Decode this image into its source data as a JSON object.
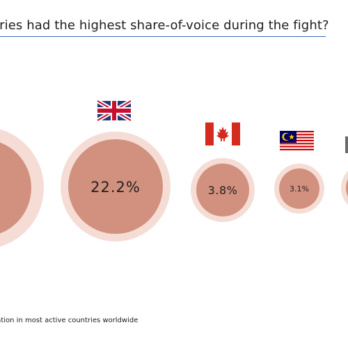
{
  "title": "tries had the highest share-of-voice during the fight?",
  "footnote": "sation in most active countries worldwide",
  "colors": {
    "inner": "#d2917e",
    "outer": "#f5ddd6",
    "title_rule": "#3b68b0"
  },
  "chart_data": {
    "type": "bubble",
    "title": "tries had the highest share-of-voice during the fight?",
    "series": [
      {
        "category": "",
        "flag": "unknown-flag-icon",
        "value": null,
        "label": "%"
      },
      {
        "category": "",
        "flag": "uk-flag-icon",
        "value": 22.2,
        "label": "22.2%"
      },
      {
        "category": "",
        "flag": "canada-flag-icon",
        "value": 3.8,
        "label": "3.8%"
      },
      {
        "category": "",
        "flag": "malaysia-flag-icon",
        "value": 3.1,
        "label": "3.1%"
      },
      {
        "category": "",
        "flag": "unknown-flag-icon",
        "value": null,
        "label": ""
      }
    ]
  }
}
